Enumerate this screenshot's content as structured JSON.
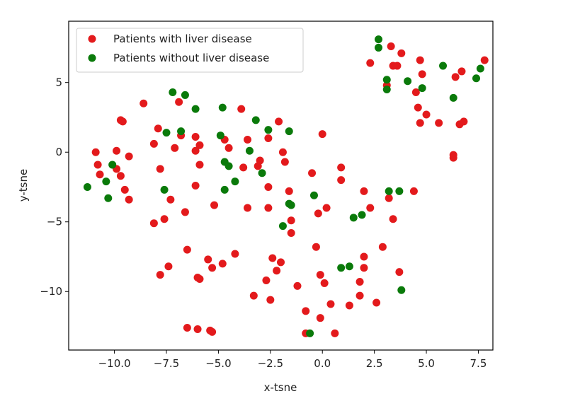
{
  "chart_data": {
    "type": "scatter",
    "title": "",
    "xlabel": "x-tsne",
    "ylabel": "y-tsne",
    "xlim": [
      -12.2,
      8.2
    ],
    "ylim": [
      -14.2,
      9.4
    ],
    "xticks": [
      -10.0,
      -7.5,
      -5.0,
      -2.5,
      0.0,
      2.5,
      5.0,
      7.5
    ],
    "xtick_labels": [
      "−10.0",
      "−7.5",
      "−5.0",
      "−2.5",
      "0.0",
      "2.5",
      "5.0",
      "7.5"
    ],
    "yticks": [
      5,
      0,
      -5,
      -10
    ],
    "ytick_labels": [
      "5",
      "0",
      "−5",
      "−10"
    ],
    "grid": false,
    "legend_position": "top-left",
    "series": [
      {
        "name": "Patients with liver disease",
        "color": "#e31a1c",
        "points": [
          [
            -10.9,
            0.0
          ],
          [
            -10.8,
            -0.9
          ],
          [
            -10.7,
            -1.6
          ],
          [
            -9.9,
            0.1
          ],
          [
            -9.9,
            -1.2
          ],
          [
            -9.7,
            2.3
          ],
          [
            -9.6,
            2.2
          ],
          [
            -9.7,
            -1.7
          ],
          [
            -9.5,
            -2.7
          ],
          [
            -9.3,
            -3.4
          ],
          [
            -9.3,
            -0.3
          ],
          [
            -8.6,
            3.5
          ],
          [
            -8.1,
            0.6
          ],
          [
            -8.1,
            -5.1
          ],
          [
            -7.9,
            1.7
          ],
          [
            -7.8,
            -1.2
          ],
          [
            -7.8,
            -8.8
          ],
          [
            -7.6,
            -4.8
          ],
          [
            -7.4,
            -8.2
          ],
          [
            -7.3,
            -3.4
          ],
          [
            -7.1,
            0.3
          ],
          [
            -6.9,
            3.6
          ],
          [
            -6.8,
            1.2
          ],
          [
            -6.6,
            -4.3
          ],
          [
            -6.5,
            -7.0
          ],
          [
            -6.5,
            -12.6
          ],
          [
            -6.1,
            0.1
          ],
          [
            -6.1,
            1.1
          ],
          [
            -6.1,
            -2.4
          ],
          [
            -6.0,
            -12.7
          ],
          [
            -5.9,
            0.5
          ],
          [
            -5.9,
            -0.9
          ],
          [
            -6.0,
            -9.0
          ],
          [
            -5.9,
            -9.1
          ],
          [
            -5.5,
            -7.7
          ],
          [
            -5.4,
            -12.8
          ],
          [
            -5.3,
            -12.9
          ],
          [
            -5.2,
            -3.8
          ],
          [
            -5.3,
            -8.3
          ],
          [
            -4.7,
            0.9
          ],
          [
            -4.8,
            -8.0
          ],
          [
            -4.5,
            0.3
          ],
          [
            -4.2,
            -7.3
          ],
          [
            -3.9,
            3.1
          ],
          [
            -3.8,
            -1.1
          ],
          [
            -3.6,
            -4.0
          ],
          [
            -3.6,
            0.9
          ],
          [
            -3.3,
            -10.3
          ],
          [
            -3.1,
            -1.0
          ],
          [
            -3.0,
            -0.6
          ],
          [
            -2.7,
            -9.2
          ],
          [
            -2.6,
            1.0
          ],
          [
            -2.6,
            -2.5
          ],
          [
            -2.6,
            -4.0
          ],
          [
            -2.5,
            -10.6
          ],
          [
            -2.4,
            -7.6
          ],
          [
            -2.2,
            -8.5
          ],
          [
            -2.1,
            2.2
          ],
          [
            -2.0,
            -7.9
          ],
          [
            -1.9,
            0.0
          ],
          [
            -1.8,
            -0.7
          ],
          [
            -1.6,
            -2.8
          ],
          [
            -1.5,
            -4.9
          ],
          [
            -1.5,
            -5.8
          ],
          [
            -1.2,
            -9.6
          ],
          [
            -0.8,
            -11.4
          ],
          [
            -0.5,
            -1.5
          ],
          [
            -0.3,
            -6.8
          ],
          [
            -0.2,
            -4.4
          ],
          [
            -0.1,
            -8.8
          ],
          [
            -0.1,
            -11.9
          ],
          [
            0.0,
            1.3
          ],
          [
            0.1,
            -9.4
          ],
          [
            0.2,
            -4.0
          ],
          [
            0.4,
            -10.9
          ],
          [
            0.6,
            -13.0
          ],
          [
            0.9,
            -1.1
          ],
          [
            0.9,
            -2.0
          ],
          [
            1.3,
            -11.0
          ],
          [
            1.8,
            -9.3
          ],
          [
            1.8,
            -10.3
          ],
          [
            2.0,
            -2.8
          ],
          [
            2.0,
            -7.5
          ],
          [
            2.0,
            -8.3
          ],
          [
            2.3,
            -4.0
          ],
          [
            2.3,
            6.4
          ],
          [
            2.6,
            -10.8
          ],
          [
            2.9,
            -6.8
          ],
          [
            3.1,
            4.8
          ],
          [
            3.2,
            -3.3
          ],
          [
            3.3,
            7.6
          ],
          [
            3.4,
            6.2
          ],
          [
            3.4,
            -4.8
          ],
          [
            3.6,
            6.2
          ],
          [
            3.7,
            -8.6
          ],
          [
            3.8,
            7.1
          ],
          [
            4.4,
            -2.8
          ],
          [
            4.5,
            4.3
          ],
          [
            4.6,
            3.2
          ],
          [
            4.7,
            6.6
          ],
          [
            4.7,
            2.1
          ],
          [
            4.8,
            5.6
          ],
          [
            5.0,
            2.7
          ],
          [
            5.6,
            2.1
          ],
          [
            6.3,
            -0.2
          ],
          [
            6.3,
            -0.4
          ],
          [
            6.4,
            5.4
          ],
          [
            6.6,
            2.0
          ],
          [
            6.7,
            5.8
          ],
          [
            6.8,
            2.2
          ],
          [
            7.8,
            6.6
          ],
          [
            -0.8,
            -13.0
          ]
        ]
      },
      {
        "name": "Patients without liver disease",
        "color": "#0a7a0a",
        "points": [
          [
            -11.3,
            -2.5
          ],
          [
            -10.4,
            -2.1
          ],
          [
            -10.3,
            -3.3
          ],
          [
            -10.1,
            -0.9
          ],
          [
            -7.6,
            -2.7
          ],
          [
            -7.5,
            1.4
          ],
          [
            -7.2,
            4.3
          ],
          [
            -6.8,
            1.5
          ],
          [
            -6.6,
            4.1
          ],
          [
            -6.1,
            3.1
          ],
          [
            -4.9,
            1.2
          ],
          [
            -4.8,
            3.2
          ],
          [
            -4.7,
            -0.7
          ],
          [
            -4.7,
            -2.7
          ],
          [
            -4.5,
            -1.0
          ],
          [
            -4.2,
            -2.1
          ],
          [
            -3.5,
            0.1
          ],
          [
            -3.2,
            2.3
          ],
          [
            -2.9,
            -1.5
          ],
          [
            -2.6,
            1.6
          ],
          [
            -1.9,
            -5.3
          ],
          [
            -1.6,
            1.5
          ],
          [
            -1.6,
            -3.7
          ],
          [
            -1.5,
            -3.8
          ],
          [
            -0.4,
            -3.1
          ],
          [
            -0.6,
            -13.0
          ],
          [
            0.9,
            -8.3
          ],
          [
            1.3,
            -8.2
          ],
          [
            1.5,
            -4.7
          ],
          [
            1.9,
            -4.5
          ],
          [
            2.7,
            8.1
          ],
          [
            2.7,
            7.5
          ],
          [
            3.1,
            4.5
          ],
          [
            3.1,
            5.2
          ],
          [
            3.2,
            -2.8
          ],
          [
            3.7,
            -2.8
          ],
          [
            3.8,
            -9.9
          ],
          [
            4.1,
            5.1
          ],
          [
            4.8,
            4.6
          ],
          [
            5.8,
            6.2
          ],
          [
            6.3,
            3.9
          ],
          [
            7.4,
            5.3
          ],
          [
            7.6,
            6.0
          ]
        ]
      }
    ]
  }
}
